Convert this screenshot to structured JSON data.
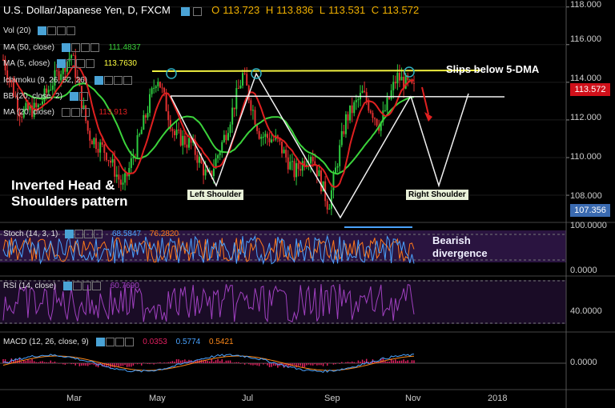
{
  "header": {
    "title": "U.S. Dollar/Japanese Yen, D, FXCM",
    "open_label": "O",
    "open": "113.723",
    "high_label": "H",
    "high": "113.836",
    "low_label": "L",
    "low": "113.531",
    "close_label": "C",
    "close": "113.572"
  },
  "indicators": {
    "vol": {
      "label": "Vol (20)"
    },
    "ma50": {
      "label": "MA (50, close)",
      "value": "111.4837",
      "color": "#3bd33b"
    },
    "ma5": {
      "label": "MA (5, close)",
      "value": "113.7630",
      "color": "#ffff40"
    },
    "ichimoku": {
      "label": "Ichimoku (9, 26, 52, 26)"
    },
    "bb": {
      "label": "BB (20, close, 2)"
    },
    "ma20": {
      "label": "MA (20, close)",
      "value": "113.913",
      "color": "#e02020"
    },
    "stoch": {
      "label": "Stoch (14, 3, 1)",
      "k": "68.5847",
      "d": "76.2820",
      "k_color": "#4aa3ff",
      "d_color": "#ff7a1a"
    },
    "rsi": {
      "label": "RSI (14, close)",
      "value": "60.7690",
      "color": "#a040c0"
    },
    "macd": {
      "label": "MACD (12, 26, close, 9)",
      "hist": "0.0353",
      "macd": "0.5774",
      "signal": "0.5421",
      "hist_color": "#e02060",
      "macd_color": "#4aa3ff",
      "signal_color": "#ff8a1a"
    }
  },
  "annotations": {
    "pattern_title_line1": "Inverted Head &",
    "pattern_title_line2": "Shoulders pattern",
    "slips": "Slips below 5-DMA",
    "left_shoulder": "Left Shoulder",
    "right_shoulder": "Right Shoulder",
    "bearish_line1": "Bearish",
    "bearish_line2": "divergence"
  },
  "price_tags": {
    "current": "113.572",
    "current_color": "#d0101a",
    "marker": "107.356",
    "marker_color": "#3a6ab0"
  },
  "chart_data": {
    "type": "candlestick",
    "main_y_ticks": [
      "118.000",
      "116.000",
      "114.000",
      "112.000",
      "110.000",
      "108.000"
    ],
    "main_y_values": [
      118,
      116,
      114,
      112,
      110,
      108
    ],
    "main_ylim": [
      106.6,
      118.2
    ],
    "stoch_y_ticks": [
      "100.0000",
      "0.0000"
    ],
    "rsi_y_ticks": [
      "40.0000"
    ],
    "macd_y_ticks": [
      "0.0000"
    ],
    "x_ticks": [
      "Mar",
      "May",
      "Jul",
      "Sep",
      "Nov",
      "2018"
    ],
    "series": [
      {
        "name": "USD/JPY",
        "points": [
          [
            "Jan 26",
            115.2
          ],
          [
            "Feb 07",
            112.4
          ],
          [
            "Feb 24",
            112.6
          ],
          [
            "Mar 02",
            114.2
          ],
          [
            "Mar 10",
            115.5
          ],
          [
            "Mar 22",
            111.2
          ],
          [
            "Apr 04",
            110.3
          ],
          [
            "Apr 17",
            108.4
          ],
          [
            "Apr 25",
            111.2
          ],
          [
            "May 10",
            114.4
          ],
          [
            "May 17",
            111.2
          ],
          [
            "Jun 01",
            110.7
          ],
          [
            "Jun 14",
            108.8
          ],
          [
            "Jun 23",
            111.3
          ],
          [
            "Jul 11",
            114.4
          ],
          [
            "Jul 21",
            111.2
          ],
          [
            "Aug 04",
            110.9
          ],
          [
            "Aug 17",
            109.2
          ],
          [
            "Sep 01",
            110.3
          ],
          [
            "Sep 08",
            107.4
          ],
          [
            "Sep 19",
            112.0
          ],
          [
            "Oct 06",
            113.4
          ],
          [
            "Oct 16",
            111.7
          ],
          [
            "Oct 27",
            114.3
          ],
          [
            "Oct 31",
            113.6
          ]
        ]
      }
    ]
  }
}
